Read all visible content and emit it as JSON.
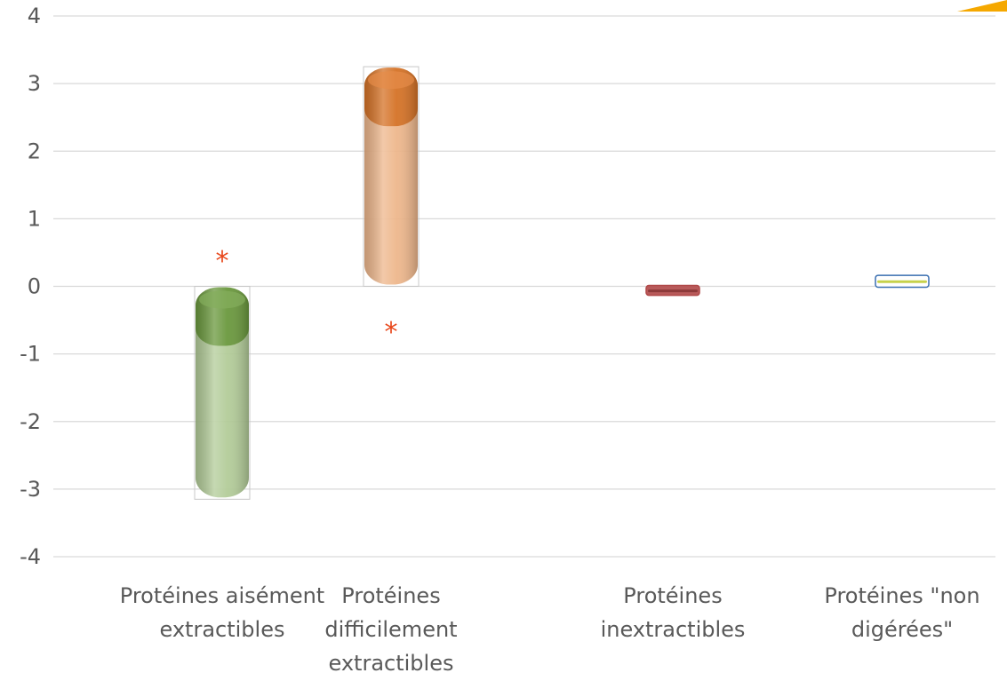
{
  "chart_data": {
    "type": "bar",
    "categories": [
      [
        "Protéines aisément",
        "extractibles"
      ],
      [
        "Protéines",
        "difficilement",
        "extractibles"
      ],
      [
        "Protéines",
        "inextractibles"
      ],
      [
        "Protéines \"non",
        "digérées\""
      ]
    ],
    "values": [
      -3.15,
      3.25,
      -0.12,
      0.15
    ],
    "colors": [
      "#70a040",
      "#e07828",
      "#b04848",
      "#3a6fb0"
    ],
    "ylim": [
      -4,
      4
    ],
    "yticks": [
      4,
      3,
      2,
      1,
      0,
      -1,
      -2,
      -3,
      -4
    ],
    "grid": true,
    "annotations": [
      {
        "text": "*",
        "category": 0,
        "y": 0.45,
        "color": "#e8481c"
      },
      {
        "text": "*",
        "category": 1,
        "y": -0.6,
        "color": "#e8481c"
      }
    ],
    "decoration_color": "#f5a800"
  }
}
